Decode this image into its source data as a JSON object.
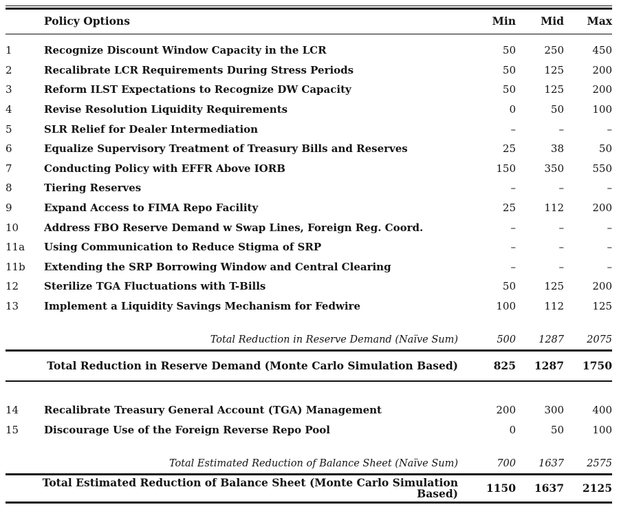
{
  "header": {
    "policy_col": "Policy Options",
    "min_col": "Min",
    "mid_col": "Mid",
    "max_col": "Max"
  },
  "rows": [
    {
      "num": "1",
      "label": "Recognize Discount Window Capacity in the LCR",
      "min": "50",
      "mid": "250",
      "max": "450"
    },
    {
      "num": "2",
      "label": "Recalibrate LCR Requirements During Stress Periods",
      "min": "50",
      "mid": "125",
      "max": "200"
    },
    {
      "num": "3",
      "label": "Reform ILST Expectations to Recognize DW Capacity",
      "min": "50",
      "mid": "125",
      "max": "200"
    },
    {
      "num": "4",
      "label": "Revise Resolution Liquidity Requirements",
      "min": "0",
      "mid": "50",
      "max": "100"
    },
    {
      "num": "5",
      "label": "SLR Relief for Dealer Intermediation",
      "min": "–",
      "mid": "–",
      "max": "–"
    },
    {
      "num": "6",
      "label": "Equalize Supervisory Treatment of Treasury Bills and Reserves",
      "min": "25",
      "mid": "38",
      "max": "50"
    },
    {
      "num": "7",
      "label": "Conducting Policy with EFFR Above IORB",
      "min": "150",
      "mid": "350",
      "max": "550"
    },
    {
      "num": "8",
      "label": "Tiering Reserves",
      "min": "–",
      "mid": "–",
      "max": "–"
    },
    {
      "num": "9",
      "label": "Expand Access to FIMA Repo Facility",
      "min": "25",
      "mid": "112",
      "max": "200"
    },
    {
      "num": "10",
      "label": "Address FBO Reserve Demand w Swap Lines, Foreign Reg. Coord.",
      "min": "–",
      "mid": "–",
      "max": "–"
    },
    {
      "num": "11a",
      "label": "Using Communication to Reduce Stigma of SRP",
      "min": "–",
      "mid": "–",
      "max": "–"
    },
    {
      "num": "11b",
      "label": "Extending the SRP Borrowing Window and Central Clearing",
      "min": "–",
      "mid": "–",
      "max": "–"
    },
    {
      "num": "12",
      "label": "Sterilize TGA Fluctuations with T-Bills",
      "min": "50",
      "mid": "125",
      "max": "200"
    },
    {
      "num": "13",
      "label": "Implement a Liquidity Savings Mechanism for Fedwire",
      "min": "100",
      "mid": "112",
      "max": "125"
    }
  ],
  "reserve_totals": {
    "naive": {
      "label": "Total Reduction in Reserve Demand (Naïve Sum)",
      "min": "500",
      "mid": "1287",
      "max": "2075"
    },
    "monte_carlo": {
      "label": "Total Reduction in Reserve Demand (Monte Carlo Simulation Based)",
      "min": "825",
      "mid": "1287",
      "max": "1750"
    }
  },
  "rows_balance": [
    {
      "num": "14",
      "label": "Recalibrate Treasury General Account (TGA) Management",
      "min": "200",
      "mid": "300",
      "max": "400"
    },
    {
      "num": "15",
      "label": "Discourage Use of the Foreign Reverse Repo Pool",
      "min": "0",
      "mid": "50",
      "max": "100"
    }
  ],
  "balance_totals": {
    "naive": {
      "label": "Total Estimated Reduction of Balance Sheet (Naïve Sum)",
      "min": "700",
      "mid": "1637",
      "max": "2575"
    },
    "monte_carlo": {
      "label": "Total Estimated Reduction of Balance Sheet (Monte Carlo Simulation Based)",
      "min": "1150",
      "mid": "1637",
      "max": "2125"
    }
  }
}
